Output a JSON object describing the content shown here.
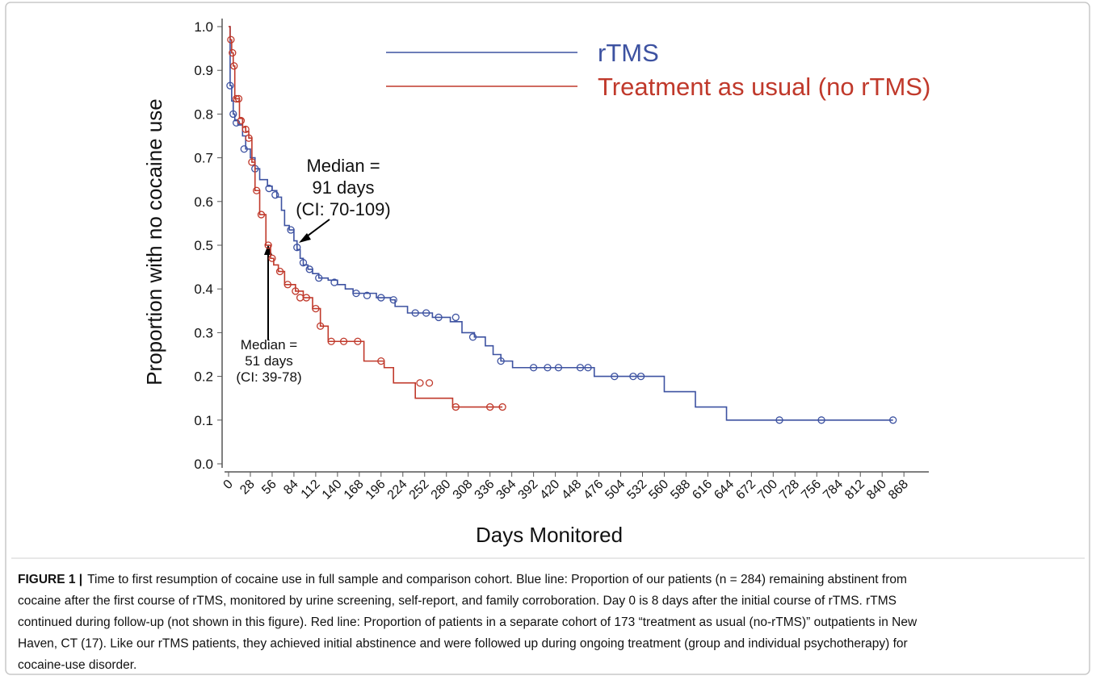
{
  "chart_data": {
    "type": "step",
    "ylabel": "Proportion with no cocaine use",
    "xlabel": "Days Monitored",
    "xlim": [
      0,
      900
    ],
    "ylim": [
      0,
      1
    ],
    "xticks": [
      0,
      28,
      56,
      84,
      112,
      140,
      168,
      196,
      224,
      252,
      280,
      308,
      336,
      364,
      392,
      420,
      448,
      476,
      504,
      532,
      560,
      588,
      616,
      644,
      672,
      700,
      728,
      756,
      784,
      812,
      840,
      868
    ],
    "yticks": [
      {
        "value": 0,
        "label": "0.0"
      },
      {
        "value": 0.1,
        "label": "0.1"
      },
      {
        "value": 0.2,
        "label": "0.2"
      },
      {
        "value": 0.3,
        "label": "0.3"
      },
      {
        "value": 0.4,
        "label": "0.4"
      },
      {
        "value": 0.5,
        "label": "0.5"
      },
      {
        "value": 0.6,
        "label": "0.6"
      },
      {
        "value": 0.7,
        "label": "0.7"
      },
      {
        "value": 0.8,
        "label": "0.8"
      },
      {
        "value": 0.9,
        "label": "0.9"
      },
      {
        "value": 1,
        "label": "1.0"
      }
    ],
    "series": [
      {
        "name": "rTMS",
        "color": "#3d52a1",
        "x": [
          0,
          2,
          4,
          6,
          8,
          12,
          18,
          22,
          28,
          34,
          40,
          50,
          56,
          62,
          68,
          72,
          78,
          84,
          88,
          92,
          96,
          102,
          108,
          116,
          128,
          140,
          150,
          160,
          190,
          208,
          214,
          230,
          262,
          285,
          300,
          316,
          330,
          340,
          350,
          365,
          470,
          560,
          600,
          640,
          854
        ],
        "values": [
          1.0,
          0.865,
          0.83,
          0.8,
          0.785,
          0.775,
          0.75,
          0.72,
          0.7,
          0.675,
          0.65,
          0.635,
          0.625,
          0.61,
          0.58,
          0.545,
          0.535,
          0.51,
          0.49,
          0.47,
          0.455,
          0.445,
          0.435,
          0.425,
          0.42,
          0.41,
          0.4,
          0.39,
          0.38,
          0.375,
          0.36,
          0.345,
          0.335,
          0.325,
          0.3,
          0.29,
          0.27,
          0.25,
          0.235,
          0.22,
          0.2,
          0.165,
          0.13,
          0.1,
          0.1
        ],
        "censor_x": [
          2,
          6,
          10,
          20,
          34,
          52,
          60,
          80,
          88,
          96,
          104,
          116,
          136,
          164,
          178,
          196,
          212,
          240,
          254,
          270,
          292,
          314,
          350,
          392,
          410,
          424,
          452,
          462,
          496,
          520,
          530,
          708,
          762,
          854
        ],
        "censor_values": [
          0.865,
          0.8,
          0.78,
          0.72,
          0.675,
          0.63,
          0.615,
          0.535,
          0.495,
          0.46,
          0.445,
          0.425,
          0.415,
          0.39,
          0.385,
          0.38,
          0.375,
          0.345,
          0.345,
          0.335,
          0.335,
          0.29,
          0.235,
          0.22,
          0.22,
          0.22,
          0.22,
          0.22,
          0.2,
          0.2,
          0.2,
          0.1,
          0.1,
          0.1
        ]
      },
      {
        "name": "Treatment as usual (no rTMS)",
        "color": "#c0392b",
        "x": [
          0,
          2,
          4,
          6,
          8,
          14,
          18,
          22,
          26,
          30,
          34,
          40,
          48,
          54,
          58,
          64,
          72,
          86,
          96,
          108,
          118,
          128,
          174,
          200,
          212,
          240,
          288,
          352
        ],
        "values": [
          1.0,
          0.97,
          0.94,
          0.91,
          0.835,
          0.79,
          0.77,
          0.76,
          0.745,
          0.69,
          0.625,
          0.57,
          0.5,
          0.47,
          0.455,
          0.44,
          0.41,
          0.395,
          0.38,
          0.355,
          0.315,
          0.28,
          0.235,
          0.22,
          0.185,
          0.15,
          0.13,
          0.13
        ],
        "censor_x": [
          3,
          5,
          7,
          10,
          13,
          16,
          22,
          26,
          30,
          36,
          42,
          51,
          56,
          66,
          76,
          86,
          92,
          100,
          112,
          118,
          132,
          148,
          166,
          196,
          246,
          258,
          292,
          336,
          352
        ],
        "censor_values": [
          0.97,
          0.94,
          0.91,
          0.835,
          0.835,
          0.785,
          0.765,
          0.745,
          0.69,
          0.625,
          0.57,
          0.5,
          0.47,
          0.44,
          0.41,
          0.395,
          0.38,
          0.38,
          0.355,
          0.315,
          0.28,
          0.28,
          0.28,
          0.235,
          0.185,
          0.185,
          0.13,
          0.13,
          0.13
        ]
      }
    ],
    "annotations": [
      {
        "lines": [
          "Median =",
          "91 days",
          "(CI: 70-109)"
        ]
      },
      {
        "lines": [
          "Median =",
          "51 days",
          "(CI: 39-78)"
        ]
      }
    ]
  },
  "caption": {
    "label": "FIGURE 1 |",
    "lines": [
      "Time to first resumption of cocaine use in full sample and comparison cohort. Blue line: Proportion of our patients (n = 284) remaining abstinent from",
      "cocaine after the first course of rTMS, monitored by urine screening, self-report, and family corroboration. Day 0 is 8 days after the initial course of rTMS. rTMS",
      "continued during follow-up (not shown in this figure). Red line: Proportion of patients in a separate cohort of 173 “treatment as usual (no-rTMS)” outpatients in New",
      "Haven, CT (17). Like our rTMS patients, they achieved initial abstinence and were followed up during ongoing treatment (group and individual psychotherapy) for",
      "cocaine-use disorder."
    ]
  }
}
